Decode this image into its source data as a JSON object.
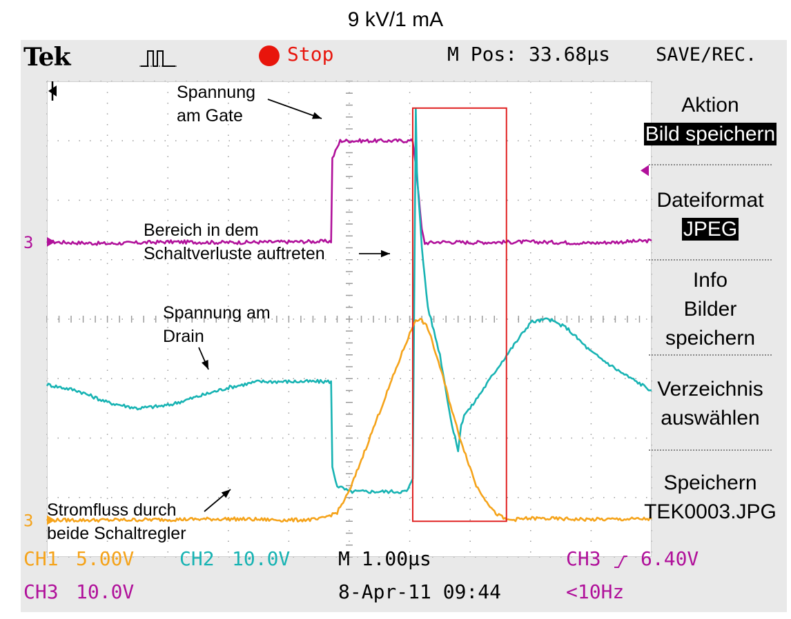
{
  "title": "9 kV/1 mA",
  "scope_header": {
    "brand": "Tek",
    "trigger_icon": "pulse-icon",
    "status": "Stop",
    "m_pos": "M Pos: 33.68µs",
    "menu_title": "SAVE/REC."
  },
  "menu": {
    "action_label": "Aktion",
    "action_value": "Bild speichern",
    "format_label": "Dateiformat",
    "format_value": "JPEG",
    "info_line1": "Info",
    "info_line2": "Bilder",
    "info_line3": "speichern",
    "dir_line1": "Verzeichnis",
    "dir_line2": "auswählen",
    "save_line1": "Speichern",
    "save_line2": "TEK0003.JPG"
  },
  "status_bar": {
    "ch1": "CH1",
    "ch1_scale": "5.00V",
    "ch2": "CH2",
    "ch2_scale": "10.0V",
    "timebase": "M 1.00µs",
    "trigger_src": "CH3",
    "trigger_level": "6.40V",
    "ch3": "CH3",
    "ch3_scale": "10.0V",
    "date": "8-Apr-11 09:44",
    "freq": "<10Hz"
  },
  "annotations": {
    "gate": [
      "Spannung",
      "am Gate"
    ],
    "region": [
      "Bereich in dem",
      "Schaltverluste auftreten"
    ],
    "drain": [
      "Spannung am",
      "Drain"
    ],
    "current": [
      "Stromfluss durch",
      "beide Schaltregler"
    ]
  },
  "colors": {
    "ch1": "#f5a31a",
    "ch2": "#17b3b3",
    "ch3": "#b0109a",
    "stop": "#e8150c",
    "highlight_box": "#e02020"
  },
  "chart_data": {
    "type": "line",
    "title": "9 kV/1 mA",
    "xlabel": "",
    "ylabel": "",
    "x_unit": "µs",
    "xlim": [
      0,
      10
    ],
    "ylim": [
      -4,
      4
    ],
    "grid": true,
    "legend": "none",
    "highlight_region": {
      "x": [
        6.05,
        7.6
      ],
      "y": [
        -3.4,
        3.55
      ]
    },
    "series": [
      {
        "name": "CH3",
        "color": "#b0109a",
        "x": [
          0,
          1,
          2,
          3,
          4,
          4.7,
          4.72,
          4.85,
          5.0,
          5.5,
          6.0,
          6.05,
          6.1,
          6.2,
          6.25,
          6.5,
          7,
          8,
          9,
          10
        ],
        "y": [
          1.3,
          1.27,
          1.3,
          1.29,
          1.3,
          1.31,
          2.7,
          3.0,
          3.0,
          3.0,
          3.0,
          3.0,
          2.6,
          1.5,
          1.28,
          1.3,
          1.29,
          1.3,
          1.28,
          1.32
        ]
      },
      {
        "name": "CH2",
        "color": "#17b3b3",
        "x": [
          0,
          0.5,
          1,
          1.5,
          2,
          2.5,
          3,
          3.5,
          4,
          4.7,
          4.72,
          4.8,
          5.0,
          5.5,
          5.95,
          6.05,
          6.1,
          6.12,
          6.2,
          6.3,
          6.5,
          6.7,
          6.8,
          6.85,
          6.9,
          7.0,
          7.2,
          7.5,
          8.0,
          8.3,
          8.6,
          9.0,
          9.5,
          10
        ],
        "y": [
          -1.1,
          -1.2,
          -1.4,
          -1.5,
          -1.45,
          -1.3,
          -1.15,
          -1.05,
          -1.05,
          -1.05,
          -2.5,
          -2.8,
          -2.9,
          -2.9,
          -2.9,
          -2.7,
          3.55,
          2.5,
          1.2,
          0.2,
          -0.6,
          -1.8,
          -2.2,
          -1.8,
          -1.6,
          -1.5,
          -1.2,
          -0.75,
          -0.05,
          0.0,
          -0.15,
          -0.55,
          -0.9,
          -1.2
        ]
      },
      {
        "name": "CH1",
        "color": "#f5a31a",
        "x": [
          0,
          1,
          2,
          3,
          4,
          4.5,
          4.8,
          5.0,
          5.3,
          5.6,
          5.9,
          6.1,
          6.2,
          6.3,
          6.5,
          6.8,
          7.1,
          7.4,
          7.6,
          8,
          9,
          10
        ],
        "y": [
          -3.38,
          -3.38,
          -3.37,
          -3.36,
          -3.38,
          -3.37,
          -3.25,
          -2.9,
          -2.1,
          -1.3,
          -0.5,
          0.0,
          -0.02,
          -0.15,
          -0.8,
          -1.9,
          -2.8,
          -3.25,
          -3.38,
          -3.35,
          -3.37,
          -3.36
        ]
      }
    ],
    "markers": {
      "ch3_ground_label": "3",
      "ch1_ground_label": "3"
    }
  }
}
